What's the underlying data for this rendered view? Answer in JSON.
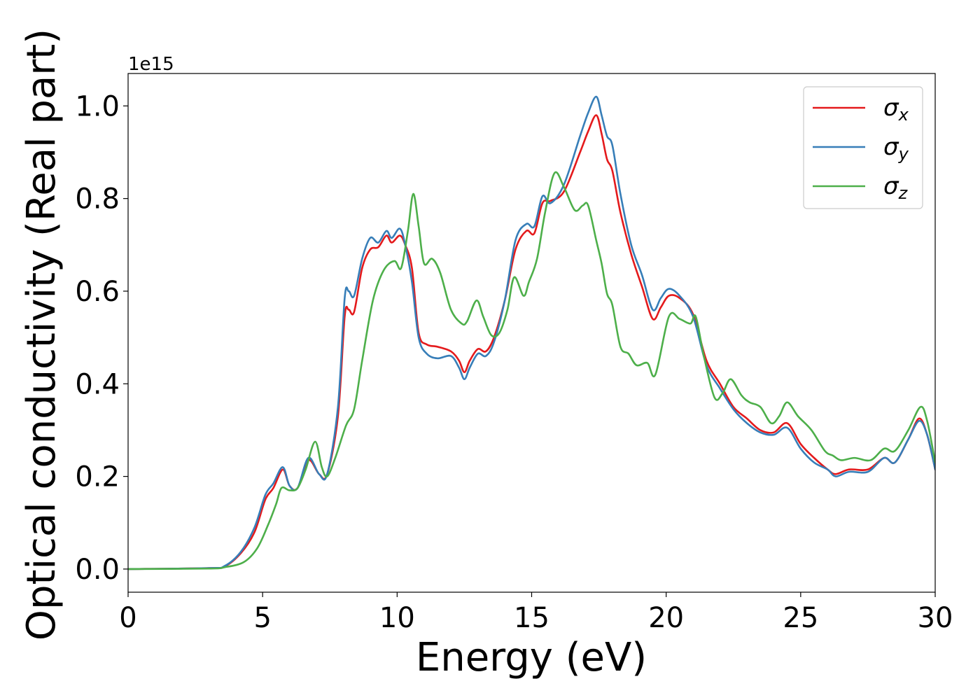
{
  "chart_data": {
    "type": "line",
    "title": "",
    "xlabel": "Energy (eV)",
    "ylabel": "Optical conductivity (Real part)",
    "y_offset_label": "1e15",
    "xlim": [
      0,
      30
    ],
    "ylim": [
      -0.05,
      1.07
    ],
    "x_ticks": [
      "0",
      "5",
      "10",
      "15",
      "20",
      "25",
      "30"
    ],
    "y_ticks": [
      "0.0",
      "0.2",
      "0.4",
      "0.6",
      "0.8",
      "1.0"
    ],
    "grid": false,
    "legend_position": "top-right",
    "series": [
      {
        "name": "σx",
        "symbol": "σ",
        "subscript": "x",
        "color": "#e41a1c",
        "points": [
          [
            0,
            0
          ],
          [
            3,
            0.002
          ],
          [
            3.6,
            0.006
          ],
          [
            4.2,
            0.035
          ],
          [
            4.7,
            0.08
          ],
          [
            5.1,
            0.15
          ],
          [
            5.4,
            0.175
          ],
          [
            5.75,
            0.215
          ],
          [
            6.0,
            0.18
          ],
          [
            6.3,
            0.175
          ],
          [
            6.7,
            0.235
          ],
          [
            7.1,
            0.205
          ],
          [
            7.4,
            0.205
          ],
          [
            7.8,
            0.33
          ],
          [
            8.05,
            0.545
          ],
          [
            8.2,
            0.56
          ],
          [
            8.4,
            0.555
          ],
          [
            8.7,
            0.65
          ],
          [
            9.0,
            0.69
          ],
          [
            9.3,
            0.695
          ],
          [
            9.6,
            0.72
          ],
          [
            9.8,
            0.705
          ],
          [
            10.1,
            0.72
          ],
          [
            10.3,
            0.7
          ],
          [
            10.55,
            0.65
          ],
          [
            10.8,
            0.51
          ],
          [
            11.1,
            0.485
          ],
          [
            11.5,
            0.48
          ],
          [
            12.0,
            0.47
          ],
          [
            12.3,
            0.45
          ],
          [
            12.5,
            0.425
          ],
          [
            12.7,
            0.45
          ],
          [
            13.0,
            0.475
          ],
          [
            13.3,
            0.47
          ],
          [
            13.6,
            0.5
          ],
          [
            14.0,
            0.58
          ],
          [
            14.4,
            0.69
          ],
          [
            14.8,
            0.73
          ],
          [
            15.1,
            0.725
          ],
          [
            15.4,
            0.79
          ],
          [
            15.7,
            0.795
          ],
          [
            16.2,
            0.815
          ],
          [
            16.8,
            0.9
          ],
          [
            17.1,
            0.945
          ],
          [
            17.4,
            0.98
          ],
          [
            17.6,
            0.94
          ],
          [
            17.8,
            0.885
          ],
          [
            18.0,
            0.86
          ],
          [
            18.3,
            0.77
          ],
          [
            18.7,
            0.68
          ],
          [
            19.1,
            0.61
          ],
          [
            19.5,
            0.54
          ],
          [
            19.8,
            0.565
          ],
          [
            20.1,
            0.59
          ],
          [
            20.5,
            0.585
          ],
          [
            21.0,
            0.55
          ],
          [
            21.5,
            0.45
          ],
          [
            22.0,
            0.4
          ],
          [
            22.5,
            0.35
          ],
          [
            23.0,
            0.325
          ],
          [
            23.5,
            0.3
          ],
          [
            24.0,
            0.295
          ],
          [
            24.5,
            0.315
          ],
          [
            25.0,
            0.27
          ],
          [
            25.5,
            0.24
          ],
          [
            26.0,
            0.215
          ],
          [
            26.3,
            0.205
          ],
          [
            26.8,
            0.215
          ],
          [
            27.5,
            0.215
          ],
          [
            28.1,
            0.24
          ],
          [
            28.5,
            0.23
          ],
          [
            29.0,
            0.28
          ],
          [
            29.4,
            0.325
          ],
          [
            29.7,
            0.29
          ],
          [
            30,
            0.215
          ]
        ]
      },
      {
        "name": "σy",
        "symbol": "σ",
        "subscript": "y",
        "color": "#377eb8",
        "points": [
          [
            0,
            0
          ],
          [
            3,
            0.002
          ],
          [
            3.6,
            0.007
          ],
          [
            4.2,
            0.038
          ],
          [
            4.7,
            0.09
          ],
          [
            5.1,
            0.16
          ],
          [
            5.4,
            0.185
          ],
          [
            5.75,
            0.22
          ],
          [
            6.0,
            0.18
          ],
          [
            6.3,
            0.175
          ],
          [
            6.7,
            0.24
          ],
          [
            7.1,
            0.205
          ],
          [
            7.4,
            0.205
          ],
          [
            7.8,
            0.35
          ],
          [
            8.05,
            0.585
          ],
          [
            8.2,
            0.6
          ],
          [
            8.4,
            0.59
          ],
          [
            8.7,
            0.67
          ],
          [
            9.0,
            0.715
          ],
          [
            9.3,
            0.705
          ],
          [
            9.6,
            0.73
          ],
          [
            9.8,
            0.715
          ],
          [
            10.1,
            0.735
          ],
          [
            10.3,
            0.7
          ],
          [
            10.55,
            0.62
          ],
          [
            10.8,
            0.5
          ],
          [
            11.1,
            0.465
          ],
          [
            11.5,
            0.455
          ],
          [
            12.0,
            0.46
          ],
          [
            12.3,
            0.435
          ],
          [
            12.5,
            0.41
          ],
          [
            12.7,
            0.435
          ],
          [
            13.0,
            0.465
          ],
          [
            13.3,
            0.46
          ],
          [
            13.6,
            0.49
          ],
          [
            14.0,
            0.58
          ],
          [
            14.4,
            0.71
          ],
          [
            14.8,
            0.745
          ],
          [
            15.1,
            0.74
          ],
          [
            15.4,
            0.805
          ],
          [
            15.7,
            0.79
          ],
          [
            16.2,
            0.83
          ],
          [
            16.8,
            0.935
          ],
          [
            17.1,
            0.985
          ],
          [
            17.4,
            1.02
          ],
          [
            17.6,
            0.98
          ],
          [
            17.8,
            0.935
          ],
          [
            18.0,
            0.915
          ],
          [
            18.3,
            0.81
          ],
          [
            18.7,
            0.7
          ],
          [
            19.1,
            0.635
          ],
          [
            19.5,
            0.56
          ],
          [
            19.8,
            0.585
          ],
          [
            20.1,
            0.605
          ],
          [
            20.5,
            0.59
          ],
          [
            21.0,
            0.545
          ],
          [
            21.5,
            0.44
          ],
          [
            22.0,
            0.39
          ],
          [
            22.5,
            0.345
          ],
          [
            23.0,
            0.315
          ],
          [
            23.5,
            0.295
          ],
          [
            24.0,
            0.29
          ],
          [
            24.5,
            0.305
          ],
          [
            25.0,
            0.26
          ],
          [
            25.5,
            0.23
          ],
          [
            26.0,
            0.215
          ],
          [
            26.3,
            0.2
          ],
          [
            26.8,
            0.21
          ],
          [
            27.5,
            0.21
          ],
          [
            28.1,
            0.24
          ],
          [
            28.5,
            0.23
          ],
          [
            29.0,
            0.28
          ],
          [
            29.4,
            0.32
          ],
          [
            29.7,
            0.29
          ],
          [
            30,
            0.215
          ]
        ]
      },
      {
        "name": "σz",
        "symbol": "σ",
        "subscript": "z",
        "color": "#4daf4a",
        "points": [
          [
            0,
            0
          ],
          [
            3,
            0.001
          ],
          [
            3.6,
            0.004
          ],
          [
            4.3,
            0.015
          ],
          [
            4.8,
            0.045
          ],
          [
            5.2,
            0.095
          ],
          [
            5.5,
            0.14
          ],
          [
            5.7,
            0.175
          ],
          [
            6.0,
            0.17
          ],
          [
            6.3,
            0.175
          ],
          [
            6.6,
            0.215
          ],
          [
            6.95,
            0.275
          ],
          [
            7.2,
            0.22
          ],
          [
            7.4,
            0.2
          ],
          [
            7.7,
            0.24
          ],
          [
            8.1,
            0.31
          ],
          [
            8.4,
            0.345
          ],
          [
            8.7,
            0.45
          ],
          [
            9.1,
            0.58
          ],
          [
            9.5,
            0.645
          ],
          [
            9.9,
            0.665
          ],
          [
            10.15,
            0.65
          ],
          [
            10.4,
            0.73
          ],
          [
            10.6,
            0.81
          ],
          [
            10.8,
            0.74
          ],
          [
            11.0,
            0.66
          ],
          [
            11.3,
            0.67
          ],
          [
            11.6,
            0.64
          ],
          [
            12.0,
            0.56
          ],
          [
            12.4,
            0.53
          ],
          [
            12.6,
            0.535
          ],
          [
            12.95,
            0.58
          ],
          [
            13.2,
            0.545
          ],
          [
            13.5,
            0.505
          ],
          [
            13.8,
            0.51
          ],
          [
            14.1,
            0.56
          ],
          [
            14.35,
            0.63
          ],
          [
            14.7,
            0.59
          ],
          [
            14.9,
            0.62
          ],
          [
            15.2,
            0.67
          ],
          [
            15.5,
            0.77
          ],
          [
            15.85,
            0.855
          ],
          [
            16.2,
            0.825
          ],
          [
            16.6,
            0.775
          ],
          [
            16.9,
            0.785
          ],
          [
            17.1,
            0.785
          ],
          [
            17.4,
            0.71
          ],
          [
            17.6,
            0.66
          ],
          [
            17.8,
            0.595
          ],
          [
            18.0,
            0.57
          ],
          [
            18.3,
            0.48
          ],
          [
            18.6,
            0.465
          ],
          [
            18.9,
            0.44
          ],
          [
            19.3,
            0.445
          ],
          [
            19.6,
            0.42
          ],
          [
            20.1,
            0.545
          ],
          [
            20.5,
            0.54
          ],
          [
            20.9,
            0.53
          ],
          [
            21.1,
            0.545
          ],
          [
            21.4,
            0.46
          ],
          [
            21.8,
            0.37
          ],
          [
            22.1,
            0.38
          ],
          [
            22.4,
            0.41
          ],
          [
            22.8,
            0.375
          ],
          [
            23.1,
            0.36
          ],
          [
            23.5,
            0.35
          ],
          [
            23.9,
            0.315
          ],
          [
            24.2,
            0.33
          ],
          [
            24.5,
            0.36
          ],
          [
            24.9,
            0.33
          ],
          [
            25.4,
            0.3
          ],
          [
            25.9,
            0.255
          ],
          [
            26.2,
            0.245
          ],
          [
            26.5,
            0.235
          ],
          [
            27.0,
            0.24
          ],
          [
            27.6,
            0.235
          ],
          [
            28.1,
            0.26
          ],
          [
            28.5,
            0.255
          ],
          [
            29.0,
            0.3
          ],
          [
            29.45,
            0.35
          ],
          [
            29.7,
            0.32
          ],
          [
            30,
            0.23
          ]
        ]
      }
    ]
  }
}
